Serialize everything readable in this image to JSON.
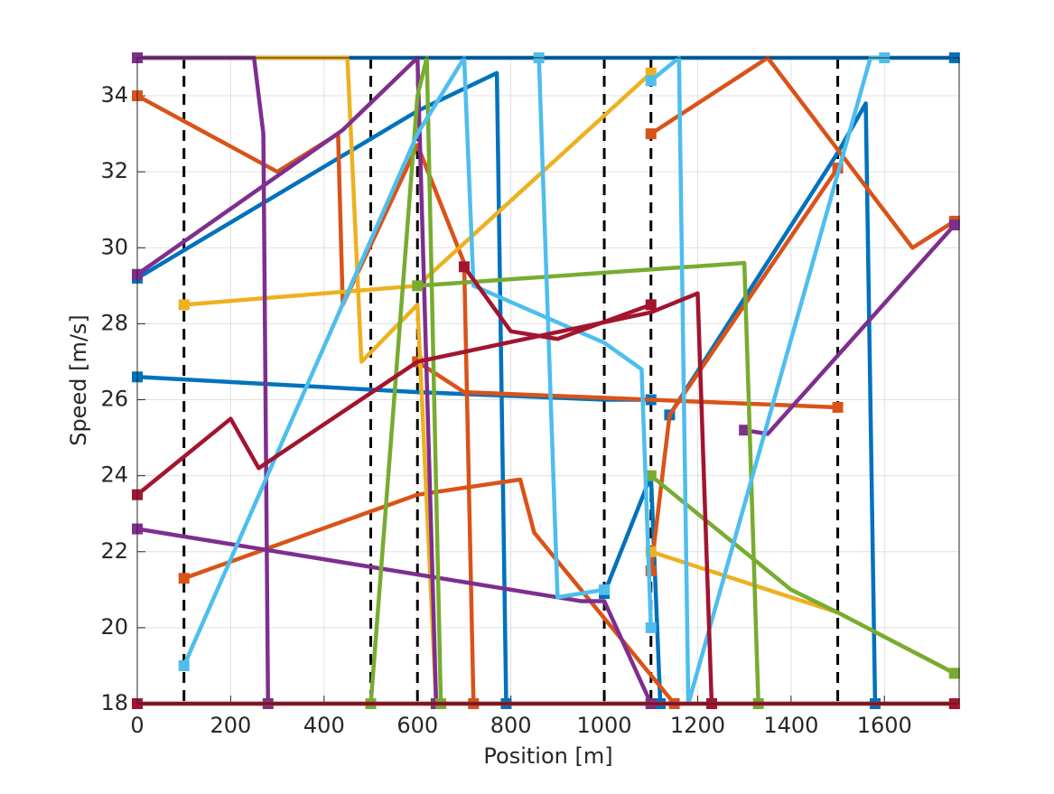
{
  "chart_data": {
    "type": "line",
    "xlabel": "Position [m]",
    "ylabel": "Speed [m/s]",
    "xlim": [
      0,
      1760
    ],
    "ylim": [
      18,
      35
    ],
    "xticks": [
      0,
      200,
      400,
      600,
      800,
      1000,
      1200,
      1400,
      1600
    ],
    "yticks": [
      18,
      20,
      22,
      24,
      26,
      28,
      30,
      32,
      34
    ],
    "grid": true,
    "vlines_x": [
      100,
      500,
      600,
      1000,
      1100,
      1500
    ],
    "vline_color": "#000000",
    "series": [
      {
        "color": "#0072BD",
        "x": [
          0,
          600,
          770,
          790
        ],
        "values": [
          29.2,
          33.6,
          34.6,
          18
        ]
      },
      {
        "color": "#0072BD",
        "x": [
          0,
          600,
          1000,
          1100
        ],
        "values": [
          26.6,
          26.2,
          26.0,
          26.0
        ]
      },
      {
        "color": "#0072BD",
        "x": [
          1000,
          1100,
          1120
        ],
        "values": [
          20.9,
          24.0,
          18
        ]
      },
      {
        "color": "#0072BD",
        "x": [
          1140,
          1500,
          1560,
          1580
        ],
        "values": [
          25.6,
          32.5,
          33.8,
          18
        ]
      },
      {
        "color": "#0072BD",
        "x": [
          0,
          1750
        ],
        "values": [
          35,
          35
        ]
      },
      {
        "color": "#D95319",
        "x": [
          100,
          600,
          820,
          850,
          1150
        ],
        "values": [
          21.3,
          23.5,
          23.9,
          22.5,
          18
        ]
      },
      {
        "color": "#D95319",
        "x": [
          1100,
          1140,
          1500
        ],
        "values": [
          21.5,
          25.6,
          32.1
        ]
      },
      {
        "color": "#D95319",
        "x": [
          600,
          700,
          1500
        ],
        "values": [
          27.0,
          26.2,
          25.8
        ]
      },
      {
        "color": "#D95319",
        "x": [
          0,
          300,
          430,
          440,
          600,
          700,
          720
        ],
        "values": [
          34.0,
          32.0,
          33.0,
          28.5,
          32.7,
          29.6,
          18
        ]
      },
      {
        "color": "#D95319",
        "x": [
          1100,
          1350,
          1660,
          1750
        ],
        "values": [
          33.0,
          35.0,
          30.0,
          30.7
        ]
      },
      {
        "color": "#EDB120",
        "x": [
          0,
          450,
          480,
          600,
          640
        ],
        "values": [
          35,
          35,
          27.0,
          28.5,
          18
        ]
      },
      {
        "color": "#EDB120",
        "x": [
          100,
          600,
          1100
        ],
        "values": [
          28.5,
          29.0,
          34.6
        ]
      },
      {
        "color": "#EDB120",
        "x": [
          1100,
          1500,
          1750
        ],
        "values": [
          22.0,
          20.4,
          18.8
        ]
      },
      {
        "color": "#7E2F8E",
        "x": [
          0,
          950,
          1000,
          1100
        ],
        "values": [
          22.6,
          20.7,
          20.7,
          18
        ]
      },
      {
        "color": "#7E2F8E",
        "x": [
          1300,
          1350,
          1750
        ],
        "values": [
          25.2,
          25.1,
          30.6
        ]
      },
      {
        "color": "#7E2F8E",
        "x": [
          0,
          250,
          270,
          280
        ],
        "values": [
          35,
          35,
          33.0,
          18
        ]
      },
      {
        "color": "#7E2F8E",
        "x": [
          0,
          440,
          600,
          640
        ],
        "values": [
          29.3,
          33.1,
          35.0,
          18
        ]
      },
      {
        "color": "#77AC30",
        "x": [
          500,
          600,
          620,
          650
        ],
        "values": [
          18,
          34.0,
          35.0,
          18
        ]
      },
      {
        "color": "#77AC30",
        "x": [
          600,
          1300,
          1330
        ],
        "values": [
          29.0,
          29.6,
          18
        ]
      },
      {
        "color": "#77AC30",
        "x": [
          1100,
          1400,
          1500,
          1750
        ],
        "values": [
          24.0,
          21.0,
          20.4,
          18.8
        ]
      },
      {
        "color": "#77AC30",
        "x": [
          0,
          1750
        ],
        "values": [
          18,
          18
        ]
      },
      {
        "color": "#4DBEEE",
        "x": [
          100,
          600,
          700,
          720,
          1000,
          1080,
          1100
        ],
        "values": [
          19.0,
          33.0,
          35.0,
          29.0,
          27.5,
          26.8,
          20.0
        ]
      },
      {
        "color": "#4DBEEE",
        "x": [
          860,
          900,
          1000
        ],
        "values": [
          35.0,
          20.8,
          21.0
        ]
      },
      {
        "color": "#4DBEEE",
        "x": [
          1100,
          1160,
          1180,
          1570,
          1600
        ],
        "values": [
          34.4,
          35.0,
          18,
          35.0,
          35.0
        ]
      },
      {
        "color": "#A2142F",
        "x": [
          0,
          200,
          260,
          600,
          1100,
          1200,
          1230
        ],
        "values": [
          23.5,
          25.5,
          24.2,
          27.0,
          28.3,
          28.8,
          18
        ]
      },
      {
        "color": "#A2142F",
        "x": [
          700,
          800,
          900,
          1100
        ],
        "values": [
          29.5,
          27.8,
          27.6,
          28.5
        ]
      },
      {
        "color": "#A2142F",
        "x": [
          0,
          1750
        ],
        "values": [
          18,
          18
        ]
      }
    ]
  }
}
